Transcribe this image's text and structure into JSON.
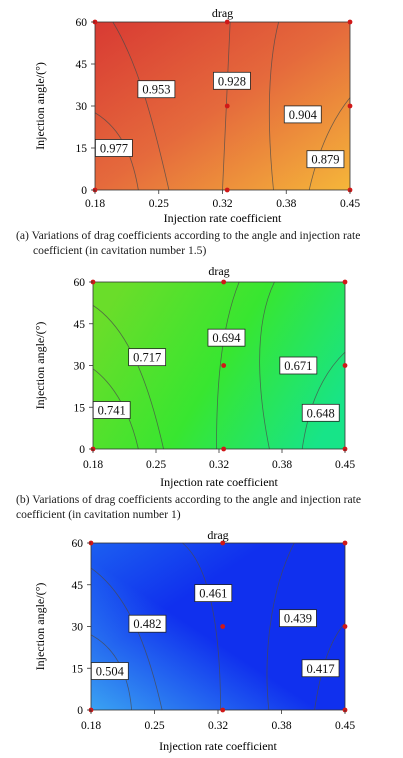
{
  "chart_data": [
    {
      "type": "contour",
      "title": "drag",
      "xlabel": "Injection rate coefficient",
      "ylabel": "Injection angle/(°)",
      "x_ticks": [
        "0.18",
        "0.25",
        "0.32",
        "0.38",
        "0.45"
      ],
      "y_ticks": [
        "0",
        "15",
        "30",
        "45",
        "60"
      ],
      "xlim": [
        0.18,
        0.45
      ],
      "ylim": [
        0,
        60
      ],
      "colormap": {
        "low": "#f5b63a",
        "mid": "#e56a3c",
        "high": "#d83a33"
      },
      "sample_points": [
        [
          0.18,
          0
        ],
        [
          0.18,
          60
        ],
        [
          0.32,
          0
        ],
        [
          0.32,
          30
        ],
        [
          0.32,
          60
        ],
        [
          0.45,
          0
        ],
        [
          0.45,
          30
        ],
        [
          0.45,
          60
        ]
      ],
      "contours": [
        {
          "label": "0.977",
          "level": 0.977,
          "label_x": 0.2,
          "label_y": 15
        },
        {
          "label": "0.953",
          "level": 0.953,
          "label_x": 0.245,
          "label_y": 36
        },
        {
          "label": "0.928",
          "level": 0.928,
          "label_x": 0.325,
          "label_y": 39
        },
        {
          "label": "0.904",
          "level": 0.904,
          "label_x": 0.4,
          "label_y": 27
        },
        {
          "label": "0.879",
          "level": 0.879,
          "label_x": 0.424,
          "label_y": 11
        }
      ],
      "caption_label": "(a)",
      "caption": "Variations of drag coefficients according to the angle and injection rate coefficient (in cavitation number 1.5)"
    },
    {
      "type": "contour",
      "title": "drag",
      "xlabel": "Injection rate coefficient",
      "ylabel": "Injection angle/(°)",
      "x_ticks": [
        "0.18",
        "0.25",
        "0.32",
        "0.38",
        "0.45"
      ],
      "y_ticks": [
        "0",
        "15",
        "30",
        "45",
        "60"
      ],
      "xlim": [
        0.18,
        0.45
      ],
      "ylim": [
        0,
        60
      ],
      "colormap": {
        "low": "#17e488",
        "mid": "#38e630",
        "high": "#6add2a"
      },
      "sample_points": [
        [
          0.18,
          0
        ],
        [
          0.18,
          60
        ],
        [
          0.32,
          0
        ],
        [
          0.32,
          30
        ],
        [
          0.32,
          60
        ],
        [
          0.45,
          0
        ],
        [
          0.45,
          30
        ],
        [
          0.45,
          60
        ]
      ],
      "contours": [
        {
          "label": "0.741",
          "level": 0.741,
          "label_x": 0.2,
          "label_y": 14
        },
        {
          "label": "0.717",
          "level": 0.717,
          "label_x": 0.238,
          "label_y": 33
        },
        {
          "label": "0.694",
          "level": 0.694,
          "label_x": 0.323,
          "label_y": 40
        },
        {
          "label": "0.671",
          "level": 0.671,
          "label_x": 0.4,
          "label_y": 30
        },
        {
          "label": "0.648",
          "level": 0.648,
          "label_x": 0.424,
          "label_y": 13
        }
      ],
      "caption_label": "(b)",
      "caption": "Variations of drag coefficients according to the angle and injection rate coefficient (in cavitation number 1)"
    },
    {
      "type": "contour",
      "title": "drag",
      "xlabel": "Injection rate coefficient",
      "ylabel": "Injection angle/(°)",
      "x_ticks": [
        "0.18",
        "0.25",
        "0.32",
        "0.38",
        "0.45"
      ],
      "y_ticks": [
        "0",
        "15",
        "30",
        "45",
        "60"
      ],
      "xlim": [
        0.18,
        0.45
      ],
      "ylim": [
        0,
        60
      ],
      "colormap": {
        "low": "#1030ee",
        "mid": "#1c5ff0",
        "high": "#3aa3f2"
      },
      "sample_points": [
        [
          0.18,
          0
        ],
        [
          0.18,
          60
        ],
        [
          0.32,
          0
        ],
        [
          0.32,
          30
        ],
        [
          0.32,
          60
        ],
        [
          0.45,
          0
        ],
        [
          0.45,
          30
        ],
        [
          0.45,
          60
        ]
      ],
      "contours": [
        {
          "label": "0.504",
          "level": 0.504,
          "label_x": 0.2,
          "label_y": 14
        },
        {
          "label": "0.482",
          "level": 0.482,
          "label_x": 0.24,
          "label_y": 31
        },
        {
          "label": "0.461",
          "level": 0.461,
          "label_x": 0.31,
          "label_y": 42
        },
        {
          "label": "0.439",
          "level": 0.439,
          "label_x": 0.4,
          "label_y": 33
        },
        {
          "label": "0.417",
          "level": 0.417,
          "label_x": 0.424,
          "label_y": 15
        }
      ]
    }
  ]
}
